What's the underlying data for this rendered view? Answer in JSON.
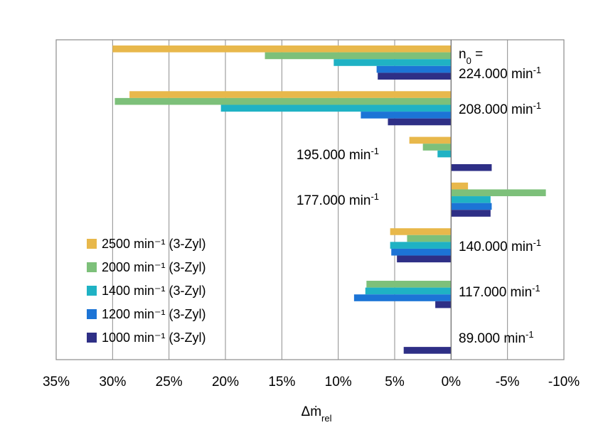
{
  "chart_data": {
    "type": "bar",
    "orientation": "horizontal",
    "x_axis_reversed": true,
    "xlabel": "Δṁ",
    "xlabel_sub": "rel",
    "xlim": [
      -10,
      35
    ],
    "x_ticks": [
      35,
      30,
      25,
      20,
      15,
      10,
      5,
      0,
      -5,
      -10
    ],
    "x_tick_labels": [
      "35%",
      "30%",
      "25%",
      "20%",
      "15%",
      "10%",
      "5%",
      "0%",
      "-5%",
      "-10%"
    ],
    "grid": "vertical",
    "legend_position": "bottom-left",
    "categories": [
      {
        "id": "n224",
        "prefix": "n",
        "prefix_sub": "0",
        "prefix_suffix": " =",
        "label": "224.000 min",
        "sup": "-1"
      },
      {
        "id": "n208",
        "label": "208.000 min",
        "sup": "-1"
      },
      {
        "id": "n195",
        "label": "195.000 min",
        "sup": "-1"
      },
      {
        "id": "n177",
        "label": "177.000 min",
        "sup": "-1"
      },
      {
        "id": "n140",
        "label": "140.000 min",
        "sup": "-1"
      },
      {
        "id": "n117",
        "label": "117.000 min",
        "sup": "-1"
      },
      {
        "id": "n89",
        "label": "89.000 min",
        "sup": "-1"
      }
    ],
    "series": [
      {
        "name": "2500 min⁻¹ (3-Zyl)",
        "color": "#E8B84B",
        "values": [
          30,
          28.5,
          3.7,
          -1.5,
          5.4,
          null,
          null
        ]
      },
      {
        "name": "2000 min⁻¹ (3-Zyl)",
        "color": "#7DC07A",
        "values": [
          16.5,
          29.8,
          2.5,
          -8.4,
          3.9,
          7.5,
          null
        ]
      },
      {
        "name": "1400 min⁻¹ (3-Zyl)",
        "color": "#1FB2C4",
        "values": [
          10.4,
          20.4,
          1.2,
          -3.5,
          5.4,
          7.6,
          null
        ]
      },
      {
        "name": "1200 min⁻¹ (3-Zyl)",
        "color": "#1C74D6",
        "values": [
          6.6,
          8.0,
          null,
          -3.6,
          5.3,
          8.6,
          null
        ]
      },
      {
        "name": "1000 min⁻¹ (3-Zyl)",
        "color": "#2E2F86",
        "values": [
          6.5,
          5.6,
          -3.6,
          -3.5,
          4.8,
          1.4,
          4.2
        ]
      }
    ]
  }
}
